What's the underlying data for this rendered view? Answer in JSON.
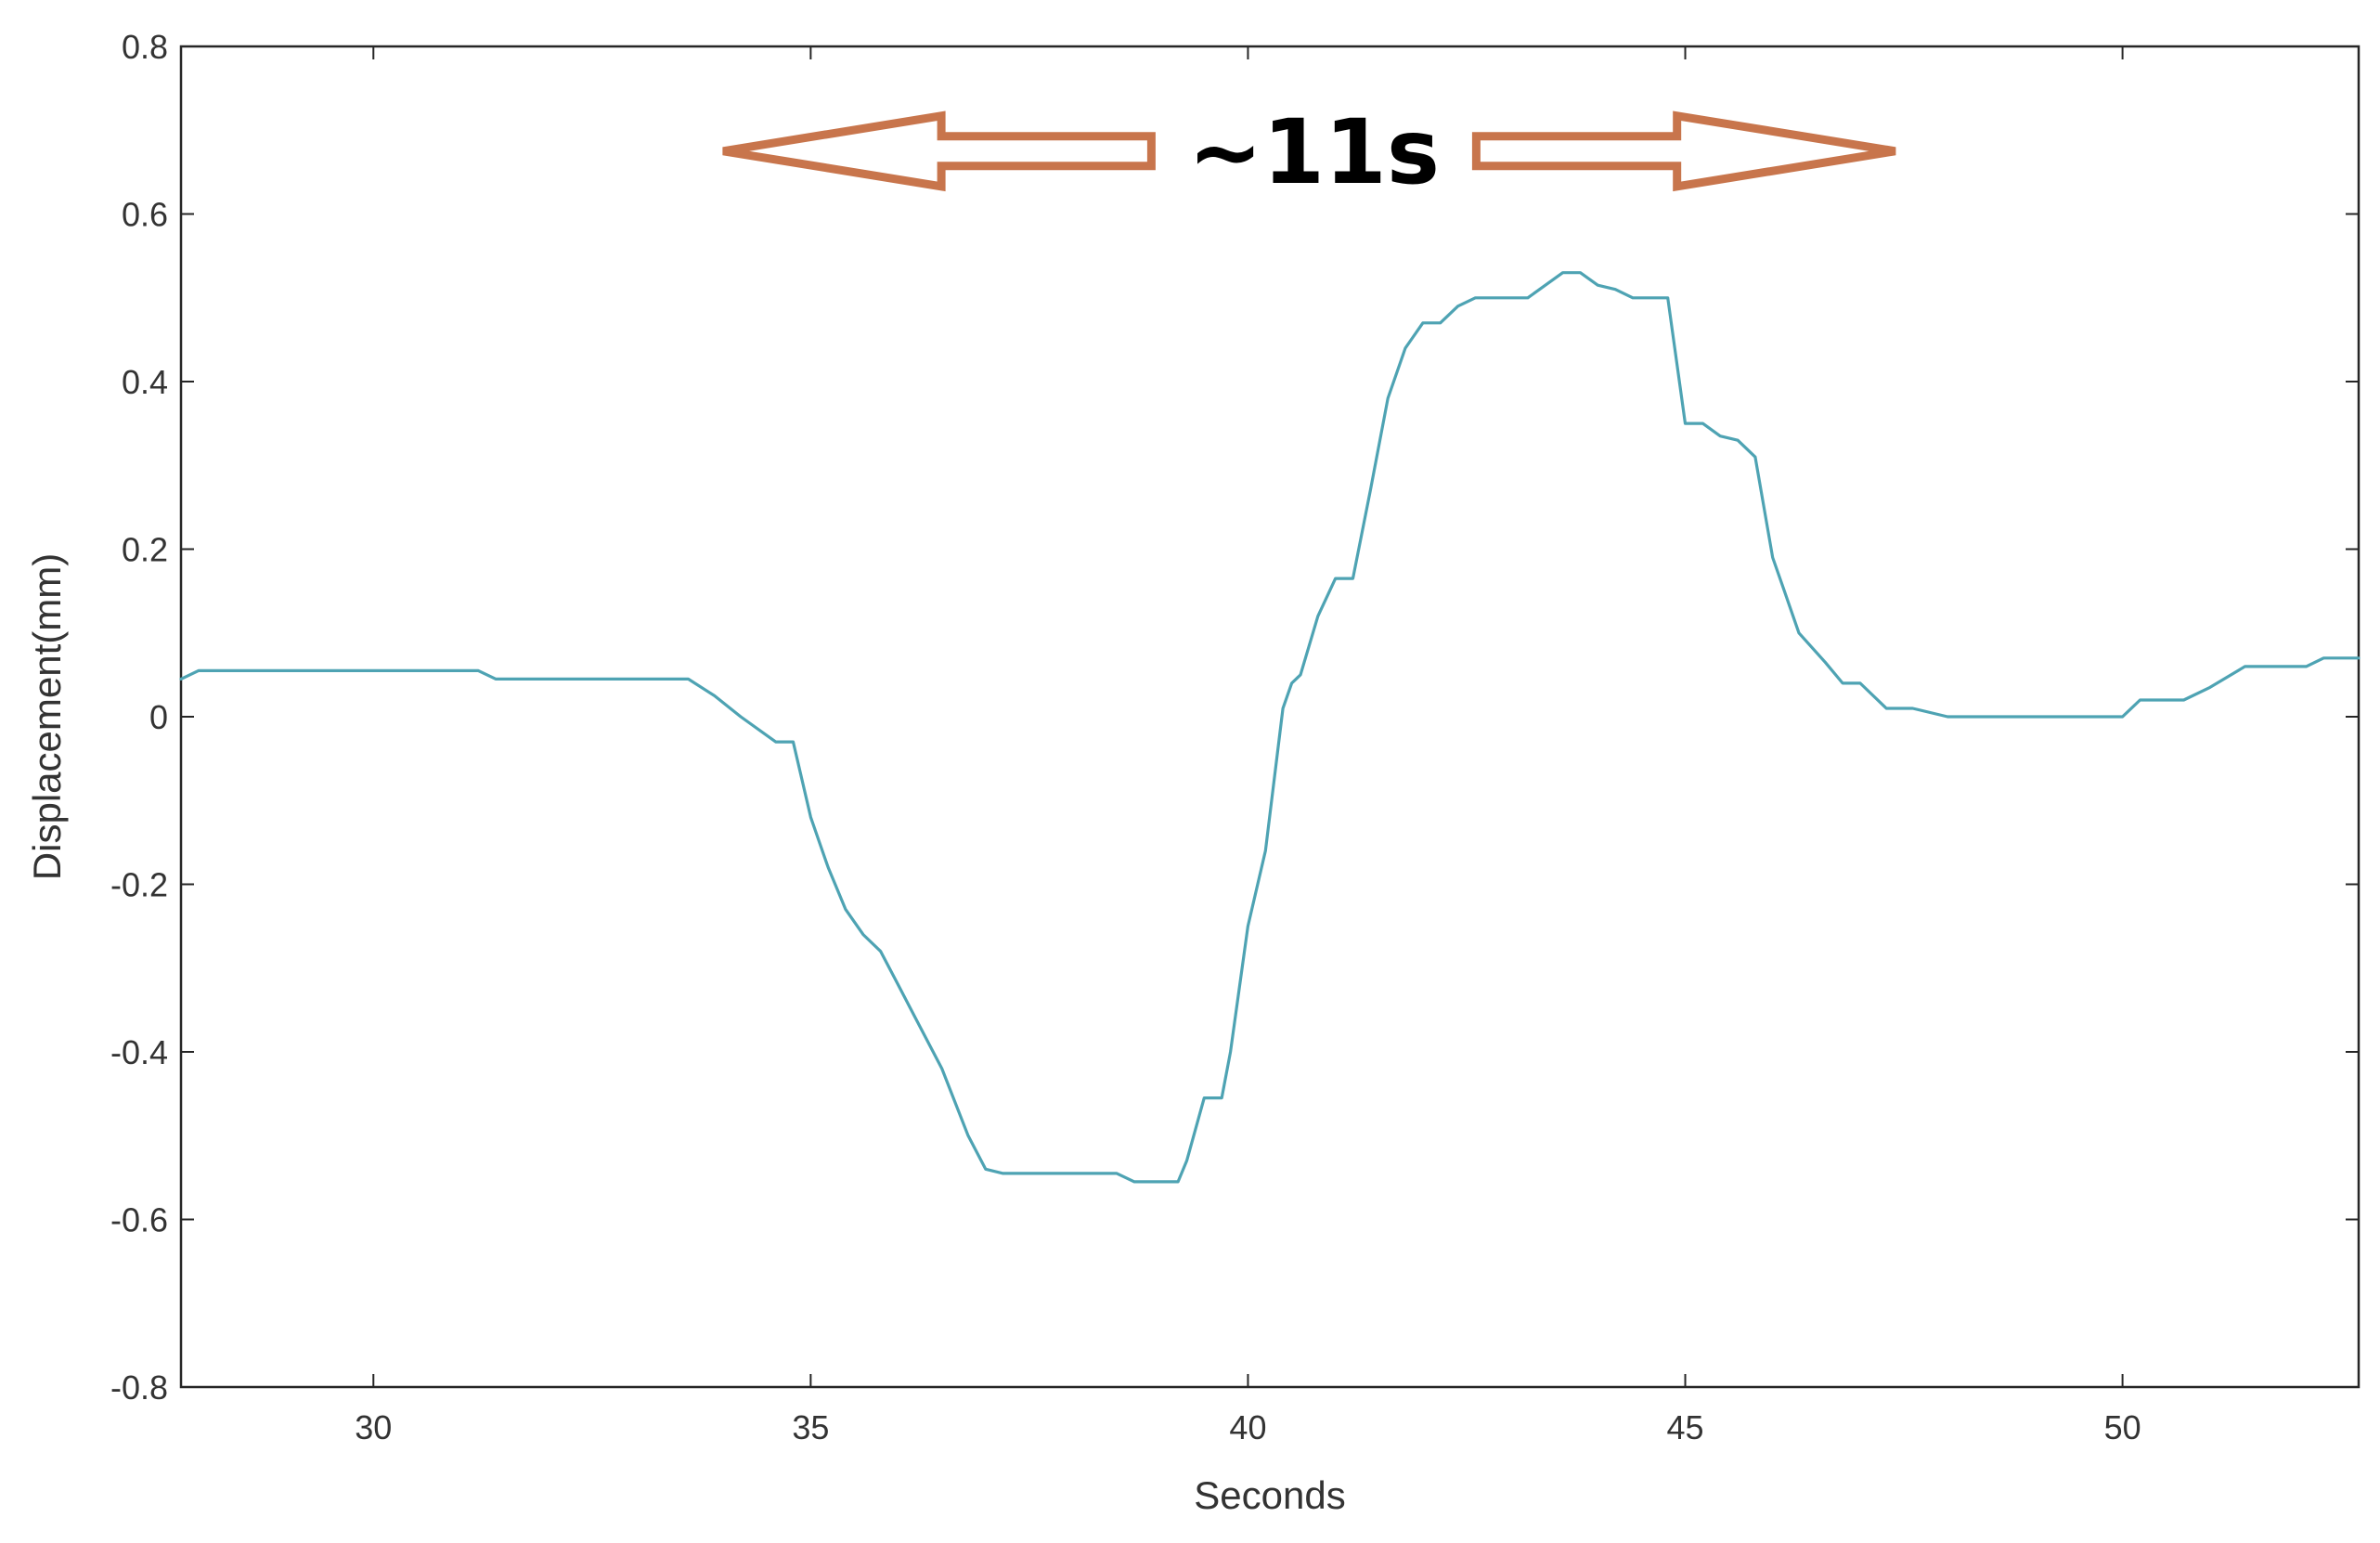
{
  "chart_data": {
    "type": "line",
    "title": "",
    "xlabel": "Seconds",
    "ylabel": "Displacement(mm)",
    "xlim": [
      27.8,
      52.7
    ],
    "ylim": [
      -0.8,
      0.8
    ],
    "xticks": [
      30,
      35,
      40,
      45,
      50
    ],
    "yticks": [
      -0.8,
      -0.6,
      -0.4,
      -0.2,
      0,
      0.2,
      0.4,
      0.6,
      0.8
    ],
    "grid": false,
    "legend": "none",
    "line_color": "#4ea3b3",
    "series": [
      {
        "x": [
          27.8,
          28.0,
          28.2,
          31.2,
          31.4,
          33.6,
          33.9,
          34.2,
          34.6,
          34.8,
          35.0,
          35.2,
          35.4,
          35.6,
          35.8,
          36.0,
          36.2,
          36.5,
          36.8,
          37.0,
          37.2,
          38.5,
          38.7,
          39.2,
          39.3,
          39.5,
          39.7,
          39.8,
          40.0,
          40.2,
          40.4,
          40.5,
          40.6,
          40.8,
          41.0,
          41.2,
          41.4,
          41.6,
          41.8,
          42.0,
          42.2,
          42.4,
          42.6,
          42.8,
          43.0,
          43.2,
          43.6,
          43.8,
          44.0,
          44.2,
          44.4,
          44.6,
          44.8,
          45.0,
          45.2,
          45.4,
          45.6,
          45.8,
          46.0,
          46.1,
          46.3,
          46.6,
          46.8,
          47.0,
          47.3,
          47.6,
          48.0,
          48.3,
          50.0,
          50.2,
          50.7,
          51.0,
          51.4,
          51.8,
          52.1,
          52.3,
          52.7
        ],
        "y": [
          0.045,
          0.055,
          0.055,
          0.055,
          0.045,
          0.045,
          0.025,
          0.0,
          -0.03,
          -0.03,
          -0.12,
          -0.18,
          -0.23,
          -0.26,
          -0.28,
          -0.32,
          -0.36,
          -0.42,
          -0.5,
          -0.54,
          -0.545,
          -0.545,
          -0.555,
          -0.555,
          -0.53,
          -0.455,
          -0.455,
          -0.4,
          -0.25,
          -0.16,
          0.01,
          0.04,
          0.05,
          0.12,
          0.165,
          0.165,
          0.27,
          0.38,
          0.44,
          0.47,
          0.47,
          0.49,
          0.5,
          0.5,
          0.5,
          0.5,
          0.53,
          0.53,
          0.515,
          0.51,
          0.5,
          0.5,
          0.5,
          0.35,
          0.35,
          0.335,
          0.33,
          0.31,
          0.19,
          0.16,
          0.1,
          0.065,
          0.04,
          0.04,
          0.01,
          0.01,
          0.0,
          0.0,
          0.0,
          0.02,
          0.02,
          0.035,
          0.06,
          0.06,
          0.06,
          0.07,
          0.07
        ]
      }
    ],
    "annotations": [
      {
        "text": "~11s",
        "color": "#c8754c",
        "type": "double-arrow",
        "x_range": [
          34.0,
          47.4
        ],
        "y": 0.675
      }
    ]
  }
}
